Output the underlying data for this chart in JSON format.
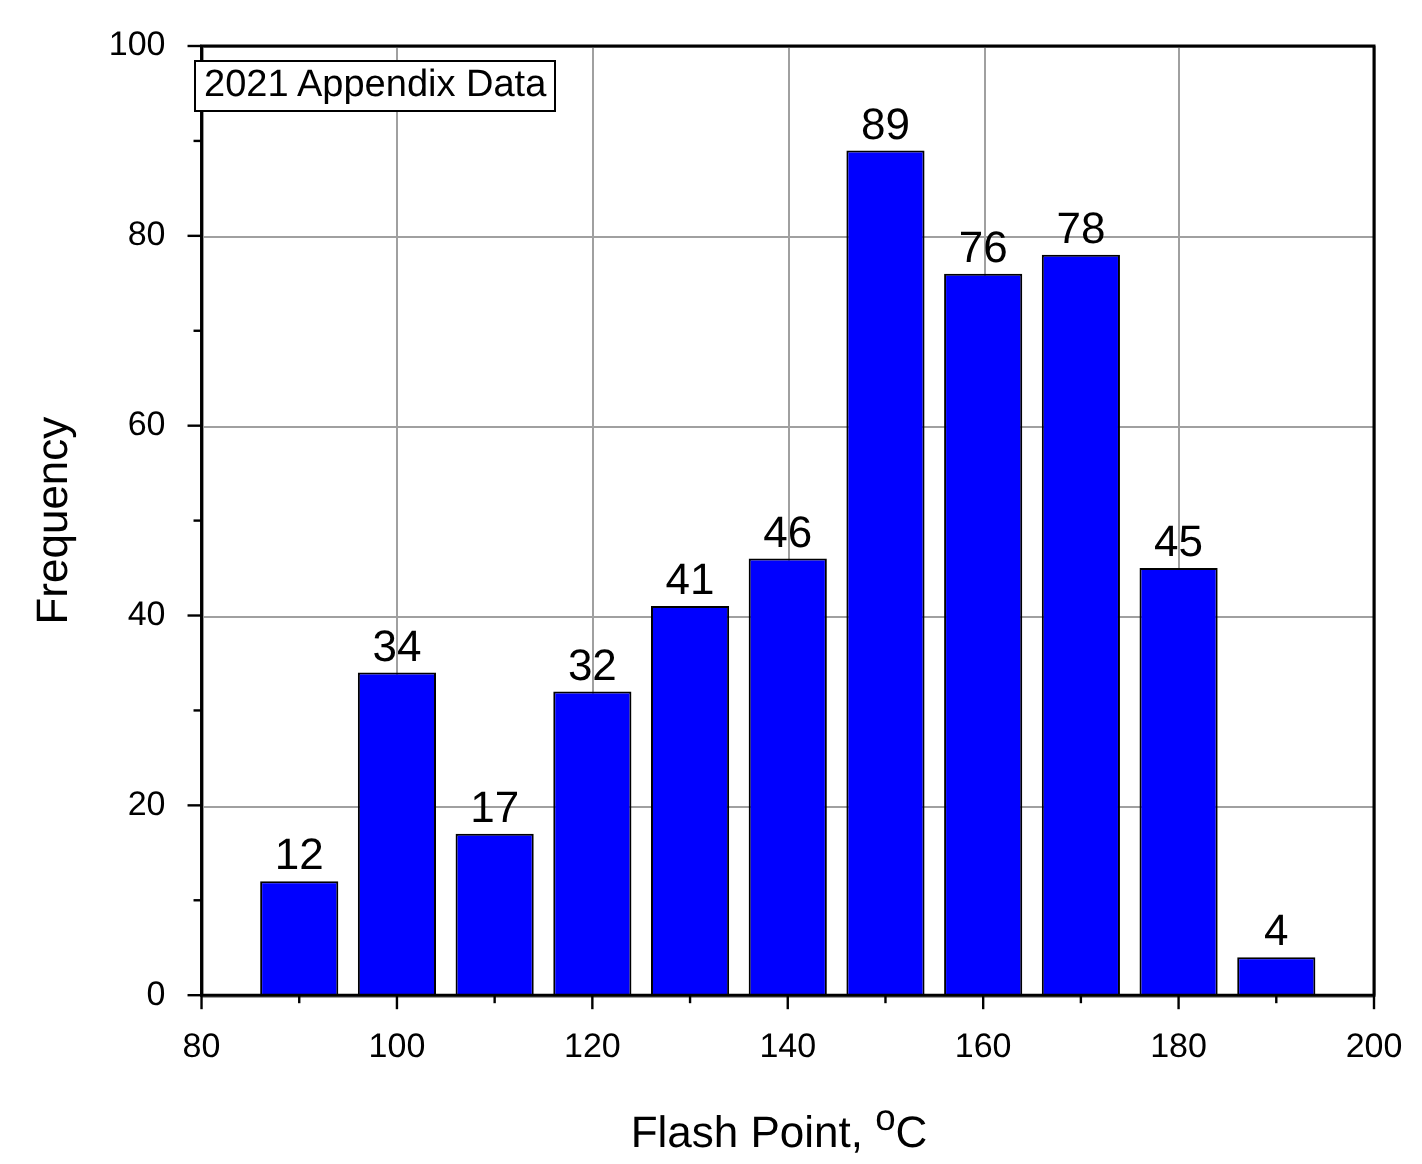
{
  "chart_data": {
    "type": "histogram",
    "xlabel": "Flash Point, $^{o}$C",
    "ylabel": "Frequency",
    "annotations": [
      "2021 Appendix Data"
    ],
    "bins": [
      85,
      95,
      105,
      115,
      125,
      135,
      145,
      155,
      165,
      175,
      185,
      195
    ],
    "values": [
      12,
      34,
      17,
      32,
      41,
      46,
      89,
      76,
      78,
      45,
      4
    ],
    "color": "#0000ff",
    "data_labels": true,
    "xlim": [
      80,
      200
    ],
    "xticks": [
      80,
      {
        "value": 90,
        "label": null
      },
      100,
      {
        "value": 110,
        "label": null
      },
      120,
      {
        "value": 130,
        "label": null
      },
      140,
      {
        "value": 150,
        "label": null
      },
      160,
      {
        "value": 170,
        "label": null
      },
      180,
      {
        "value": 190,
        "label": null
      },
      200
    ],
    "ylim": [
      0,
      100
    ],
    "yticks": [
      0,
      {
        "value": 10,
        "label": null
      },
      20,
      {
        "value": 30,
        "label": null
      },
      40,
      {
        "value": 50,
        "label": null
      },
      60,
      {
        "value": 70,
        "label": null
      },
      80,
      {
        "value": 90,
        "label": null
      },
      100
    ],
    "grid": true,
    "legend": false
  }
}
